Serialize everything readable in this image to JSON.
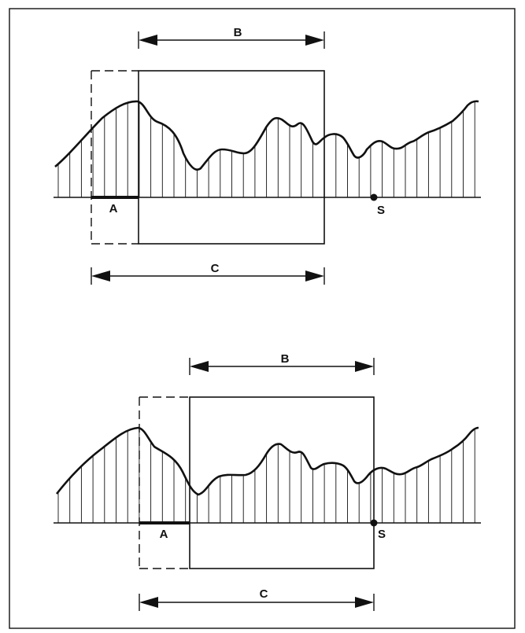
{
  "panels": [
    {
      "id": "top",
      "labels": {
        "a": "A",
        "b": "B",
        "c": "C",
        "s": "S"
      }
    },
    {
      "id": "bottom",
      "labels": {
        "a": "A",
        "b": "B",
        "c": "C",
        "s": "S"
      }
    }
  ],
  "colors": {
    "stroke": "#111111",
    "background": "#ffffff"
  }
}
